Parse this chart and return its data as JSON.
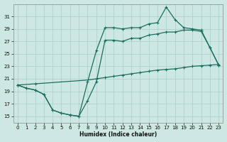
{
  "xlabel": "Humidex (Indice chaleur)",
  "background_color": "#cde8e2",
  "grid_color": "#aacec8",
  "line_color": "#1a6e60",
  "xlim": [
    -0.5,
    23.5
  ],
  "ylim": [
    14,
    33
  ],
  "yticks": [
    15,
    17,
    19,
    21,
    23,
    25,
    27,
    29,
    31
  ],
  "xticks": [
    0,
    1,
    2,
    3,
    4,
    5,
    6,
    7,
    8,
    9,
    10,
    11,
    12,
    13,
    14,
    15,
    16,
    17,
    18,
    19,
    20,
    21,
    22,
    23
  ],
  "line1_x": [
    0,
    1,
    2,
    3,
    4,
    5,
    6,
    7,
    8,
    9,
    10,
    11,
    12,
    13,
    14,
    15,
    16,
    17,
    18,
    19,
    20,
    21,
    22,
    23
  ],
  "line1_y": [
    20.0,
    20.1,
    20.2,
    20.3,
    20.4,
    20.5,
    20.6,
    20.7,
    20.8,
    21.0,
    21.2,
    21.4,
    21.6,
    21.8,
    22.0,
    22.2,
    22.4,
    22.5,
    22.6,
    22.8,
    23.0,
    23.1,
    23.2,
    23.3
  ],
  "line1_marker_x": [
    0,
    2,
    9,
    10,
    11,
    12,
    13,
    14,
    15,
    16,
    17,
    18,
    19,
    20,
    21,
    22,
    23
  ],
  "line1_marker_y": [
    20.0,
    20.2,
    21.0,
    21.2,
    21.4,
    21.6,
    21.8,
    22.0,
    22.2,
    22.4,
    22.5,
    22.6,
    22.8,
    23.0,
    23.1,
    23.2,
    23.3
  ],
  "line2_x": [
    0,
    1,
    2,
    3,
    4,
    5,
    6,
    7,
    8,
    9,
    10,
    11,
    12,
    13,
    14,
    15,
    16,
    17,
    18,
    19,
    20,
    21,
    22,
    23
  ],
  "line2_y": [
    20.0,
    19.5,
    19.2,
    18.5,
    16.0,
    15.5,
    15.2,
    15.0,
    17.5,
    20.5,
    27.2,
    27.2,
    27.0,
    27.5,
    27.5,
    28.0,
    28.2,
    28.5,
    28.5,
    28.8,
    28.8,
    28.6,
    26.0,
    23.2
  ],
  "line3_x": [
    0,
    1,
    2,
    3,
    4,
    5,
    6,
    7,
    8,
    9,
    10,
    11,
    12,
    13,
    14,
    15,
    16,
    17,
    18,
    19,
    20,
    21,
    22,
    23
  ],
  "line3_y": [
    20.0,
    19.5,
    19.2,
    18.5,
    16.0,
    15.5,
    15.2,
    15.0,
    20.5,
    25.5,
    29.2,
    29.2,
    29.0,
    29.2,
    29.2,
    29.8,
    30.0,
    32.5,
    30.5,
    29.2,
    29.0,
    28.8,
    26.0,
    23.2
  ]
}
